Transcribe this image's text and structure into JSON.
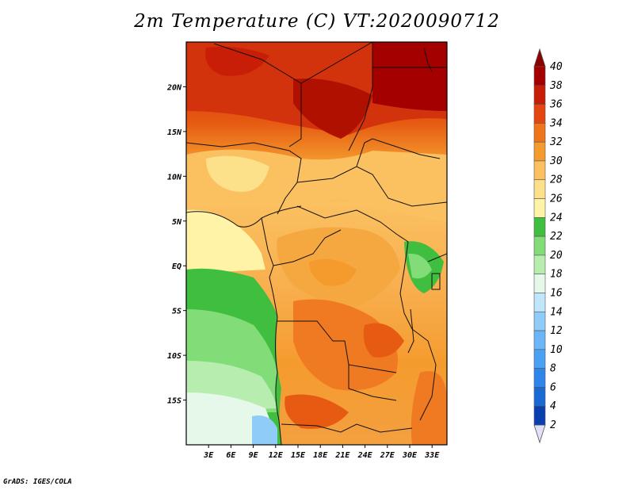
{
  "title": "2m Temperature (C) VT:2020090712",
  "credit": "GrADS: IGES/COLA",
  "map": {
    "region": "Central Africa",
    "lon_range": [
      0,
      35
    ],
    "lat_range": [
      -20,
      25
    ],
    "lon_ticks": [
      "3E",
      "6E",
      "9E",
      "12E",
      "15E",
      "18E",
      "21E",
      "24E",
      "27E",
      "30E",
      "33E"
    ],
    "lat_ticks": [
      "20N",
      "15N",
      "10N",
      "5N",
      "EQ",
      "5S",
      "10S",
      "15S"
    ]
  },
  "colorbar": {
    "levels": [
      "2",
      "4",
      "6",
      "8",
      "10",
      "12",
      "14",
      "16",
      "18",
      "20",
      "22",
      "24",
      "26",
      "28",
      "30",
      "32",
      "34",
      "36",
      "38",
      "40"
    ],
    "colors": [
      "#0c0c6e",
      "#0a3fb0",
      "#1a6ad6",
      "#2e86ec",
      "#4aa0f2",
      "#6ab6f6",
      "#90ccf8",
      "#bfe6fb",
      "#e6f8ea",
      "#b7eeb0",
      "#82dc78",
      "#3fbe3f",
      "#fff3a8",
      "#fde08a",
      "#fbc060",
      "#f59b2e",
      "#f0741a",
      "#e3470f",
      "#c81e08",
      "#a50000",
      "#8c0000"
    ]
  }
}
